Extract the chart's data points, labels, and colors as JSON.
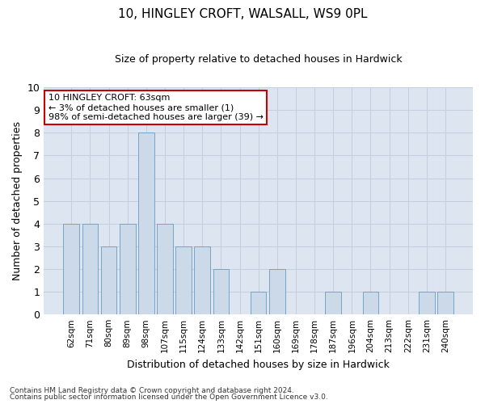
{
  "title": "10, HINGLEY CROFT, WALSALL, WS9 0PL",
  "subtitle": "Size of property relative to detached houses in Hardwick",
  "xlabel": "Distribution of detached houses by size in Hardwick",
  "ylabel": "Number of detached properties",
  "categories": [
    "62sqm",
    "71sqm",
    "80sqm",
    "89sqm",
    "98sqm",
    "107sqm",
    "115sqm",
    "124sqm",
    "133sqm",
    "142sqm",
    "151sqm",
    "160sqm",
    "169sqm",
    "178sqm",
    "187sqm",
    "196sqm",
    "204sqm",
    "213sqm",
    "222sqm",
    "231sqm",
    "240sqm"
  ],
  "values": [
    4,
    4,
    3,
    4,
    8,
    4,
    3,
    3,
    2,
    0,
    1,
    2,
    0,
    0,
    1,
    0,
    1,
    0,
    0,
    1,
    1
  ],
  "bar_color": "#ccd9e8",
  "bar_edge_color": "#6a9abf",
  "annotation_text": "10 HINGLEY CROFT: 63sqm\n← 3% of detached houses are smaller (1)\n98% of semi-detached houses are larger (39) →",
  "ylim": [
    0,
    10
  ],
  "yticks": [
    0,
    1,
    2,
    3,
    4,
    5,
    6,
    7,
    8,
    9,
    10
  ],
  "grid_color": "#c5cfe0",
  "background_color": "#dde6f0",
  "footnote1": "Contains HM Land Registry data © Crown copyright and database right 2024.",
  "footnote2": "Contains public sector information licensed under the Open Government Licence v3.0."
}
